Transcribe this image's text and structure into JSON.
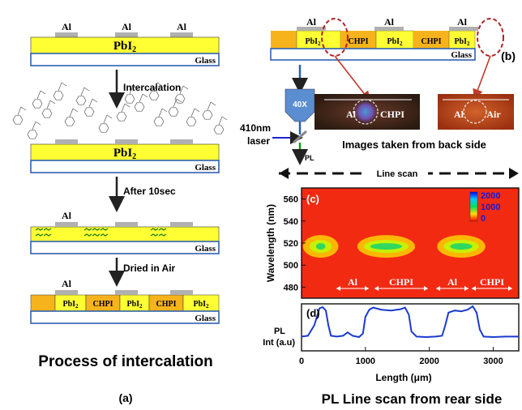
{
  "panel_a": {
    "stage1": {
      "electrodes": [
        "Al",
        "Al",
        "Al"
      ],
      "film": "PbI",
      "film_sub": "2",
      "substrate": "Glass"
    },
    "step1": "Intercalation",
    "stage2": {
      "film": "PbI",
      "film_sub": "2",
      "substrate": "Glass"
    },
    "step2": "After 10sec",
    "stage3": {
      "electrode": "Al",
      "substrate": "Glass"
    },
    "step3": "Dried in Air",
    "stage4": {
      "electrode": "Al",
      "segments": [
        {
          "text": "PbI",
          "sub": "2"
        },
        {
          "text": "CHPI",
          "sub": ""
        },
        {
          "text": "PbI",
          "sub": "2"
        },
        {
          "text": "CHPI",
          "sub": ""
        },
        {
          "text": "PbI",
          "sub": "2"
        }
      ],
      "substrate": "Glass"
    },
    "title": "Process of intercalation",
    "label": "(a)"
  },
  "panel_b": {
    "electrodes": [
      "Al",
      "Al",
      "Al"
    ],
    "segments": [
      {
        "text": "PbI",
        "sub": "2"
      },
      {
        "text": "CHPI",
        "sub": ""
      },
      {
        "text": "PbI",
        "sub": "2"
      },
      {
        "text": "CHPI",
        "sub": ""
      },
      {
        "text": "PbI",
        "sub": "2"
      }
    ],
    "substrate": "Glass",
    "label": "(b)",
    "objective": "40X",
    "laser": "410nm",
    "laser_line2": "laser",
    "pl": "PL",
    "image1": {
      "left": "Al",
      "right": "CHPI"
    },
    "image2": {
      "left": "Al",
      "right": "Air"
    },
    "images_caption": "Images taken from back side"
  },
  "panel_c": {
    "line_scan": "Line scan",
    "label": "(c)",
    "region_labels": [
      "Al",
      "CHPI",
      "Al",
      "CHPI"
    ],
    "colorbar_ticks": [
      "2000",
      "1000",
      "0"
    ]
  },
  "panel_d": {
    "label": "(d)",
    "ylabel": "PL",
    "ylabel_line2": "Int (a.u)",
    "title": "PL Line scan from rear side"
  },
  "chart_data": [
    {
      "type": "heatmap",
      "xlabel": "",
      "ylabel": "Wavelength (nm)",
      "xlim": [
        0,
        3400
      ],
      "ylim": [
        470,
        570
      ],
      "yticks": [
        480,
        500,
        520,
        540,
        560
      ],
      "emission_bands": [
        {
          "x_start": 150,
          "x_end": 450,
          "center_nm": 517
        },
        {
          "x_start": 1000,
          "x_end": 1650,
          "center_nm": 517
        },
        {
          "x_start": 2250,
          "x_end": 2750,
          "center_nm": 517
        }
      ],
      "colorbar_range": [
        0,
        2000
      ]
    },
    {
      "type": "line",
      "xlabel": "Length (μm)",
      "ylabel": "PL Int (a.u)",
      "xlim": [
        0,
        3400
      ],
      "xticks": [
        0,
        1000,
        2000,
        3000
      ],
      "x": [
        0,
        100,
        200,
        280,
        330,
        380,
        420,
        460,
        550,
        650,
        720,
        800,
        900,
        960,
        1000,
        1060,
        1120,
        1250,
        1400,
        1550,
        1620,
        1680,
        1720,
        1800,
        1950,
        2100,
        2200,
        2250,
        2300,
        2400,
        2500,
        2600,
        2680,
        2740,
        2790,
        2850,
        3000,
        3200,
        3400
      ],
      "y": [
        0.28,
        0.3,
        0.55,
        0.95,
        0.98,
        0.9,
        0.55,
        0.3,
        0.28,
        0.3,
        0.38,
        0.3,
        0.27,
        0.35,
        0.75,
        0.92,
        0.97,
        0.92,
        0.9,
        0.93,
        0.97,
        0.8,
        0.4,
        0.28,
        0.27,
        0.28,
        0.3,
        0.55,
        0.85,
        0.9,
        0.88,
        0.92,
        1.0,
        0.85,
        0.45,
        0.28,
        0.27,
        0.28,
        0.28
      ]
    }
  ]
}
